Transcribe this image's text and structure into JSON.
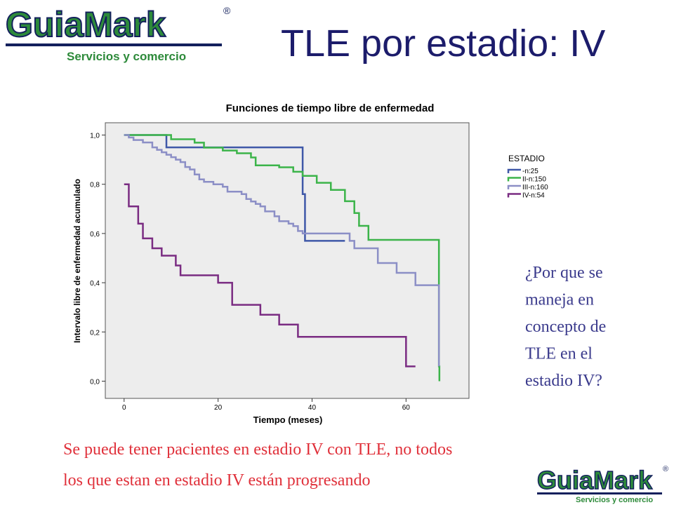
{
  "logo": {
    "name": "GuiaMark",
    "mark": "®",
    "tagline": "Servicios y comercio"
  },
  "title": "TLE por estadio: IV",
  "question": [
    "¿Por que se",
    "maneja en",
    "concepto de",
    "TLE en el",
    "estadio IV?"
  ],
  "footer": [
    "Se puede tener pacientes en estadio IV con TLE, no todos",
    "los que estan en estadio IV están progresando"
  ],
  "chart_data": {
    "type": "step",
    "title": "Funciones de tiempo libre de enfermedad",
    "x_label": "Tiempo (meses)",
    "y_label": "Intervalo libre de enfermedad acumulado",
    "legend_title": "ESTADIO",
    "xlim": [
      -4,
      73.4
    ],
    "ylim": [
      -0.07,
      1.05
    ],
    "xticks": [
      0,
      20,
      40,
      60
    ],
    "yticks": [
      {
        "value": 0,
        "label": "0,0"
      },
      {
        "value": 0.2,
        "label": "0,2"
      },
      {
        "value": 0.4,
        "label": "0,4"
      },
      {
        "value": 0.6,
        "label": "0,6"
      },
      {
        "value": 0.8,
        "label": "0,8"
      },
      {
        "value": 1,
        "label": "1,0"
      }
    ],
    "series": [
      {
        "name": "-n:25",
        "color": "#3f58a8",
        "x": [
          0,
          9,
          38,
          38.5,
          47
        ],
        "values": [
          1,
          0.95,
          0.76,
          0.57,
          0.57
        ]
      },
      {
        "name": "II-n:150",
        "color": "#3cb44a",
        "x": [
          0,
          10,
          15,
          17,
          21,
          24,
          27,
          28,
          33,
          36,
          38,
          41,
          44,
          47,
          49,
          50,
          52,
          67,
          67.1
        ],
        "values": [
          1,
          0.983,
          0.969,
          0.949,
          0.937,
          0.926,
          0.909,
          0.877,
          0.869,
          0.851,
          0.834,
          0.806,
          0.777,
          0.731,
          0.683,
          0.631,
          0.574,
          0.06,
          0
        ]
      },
      {
        "name": "III-n:160",
        "color": "#8c8fc6",
        "x": [
          0,
          1,
          2,
          4,
          6,
          7,
          8,
          9,
          10,
          11,
          12,
          13,
          14,
          15,
          16,
          17,
          19,
          21,
          22,
          25,
          26,
          27,
          28,
          29,
          30,
          32,
          33,
          35,
          36,
          37,
          38,
          48,
          49,
          54,
          58,
          62,
          67
        ],
        "values": [
          1,
          0.99,
          0.98,
          0.97,
          0.95,
          0.94,
          0.93,
          0.92,
          0.91,
          0.9,
          0.89,
          0.87,
          0.86,
          0.84,
          0.82,
          0.81,
          0.8,
          0.79,
          0.77,
          0.76,
          0.74,
          0.73,
          0.72,
          0.71,
          0.69,
          0.67,
          0.65,
          0.64,
          0.63,
          0.61,
          0.6,
          0.57,
          0.54,
          0.48,
          0.44,
          0.39,
          0.06
        ]
      },
      {
        "name": "IV-n:54",
        "color": "#7a2c82",
        "x": [
          0,
          1,
          3,
          4,
          6,
          8,
          11,
          12,
          20,
          23,
          29,
          33,
          37,
          60,
          62
        ],
        "values": [
          0.8,
          0.71,
          0.64,
          0.58,
          0.54,
          0.51,
          0.47,
          0.43,
          0.4,
          0.31,
          0.27,
          0.23,
          0.18,
          0.06,
          0.06
        ]
      }
    ]
  }
}
